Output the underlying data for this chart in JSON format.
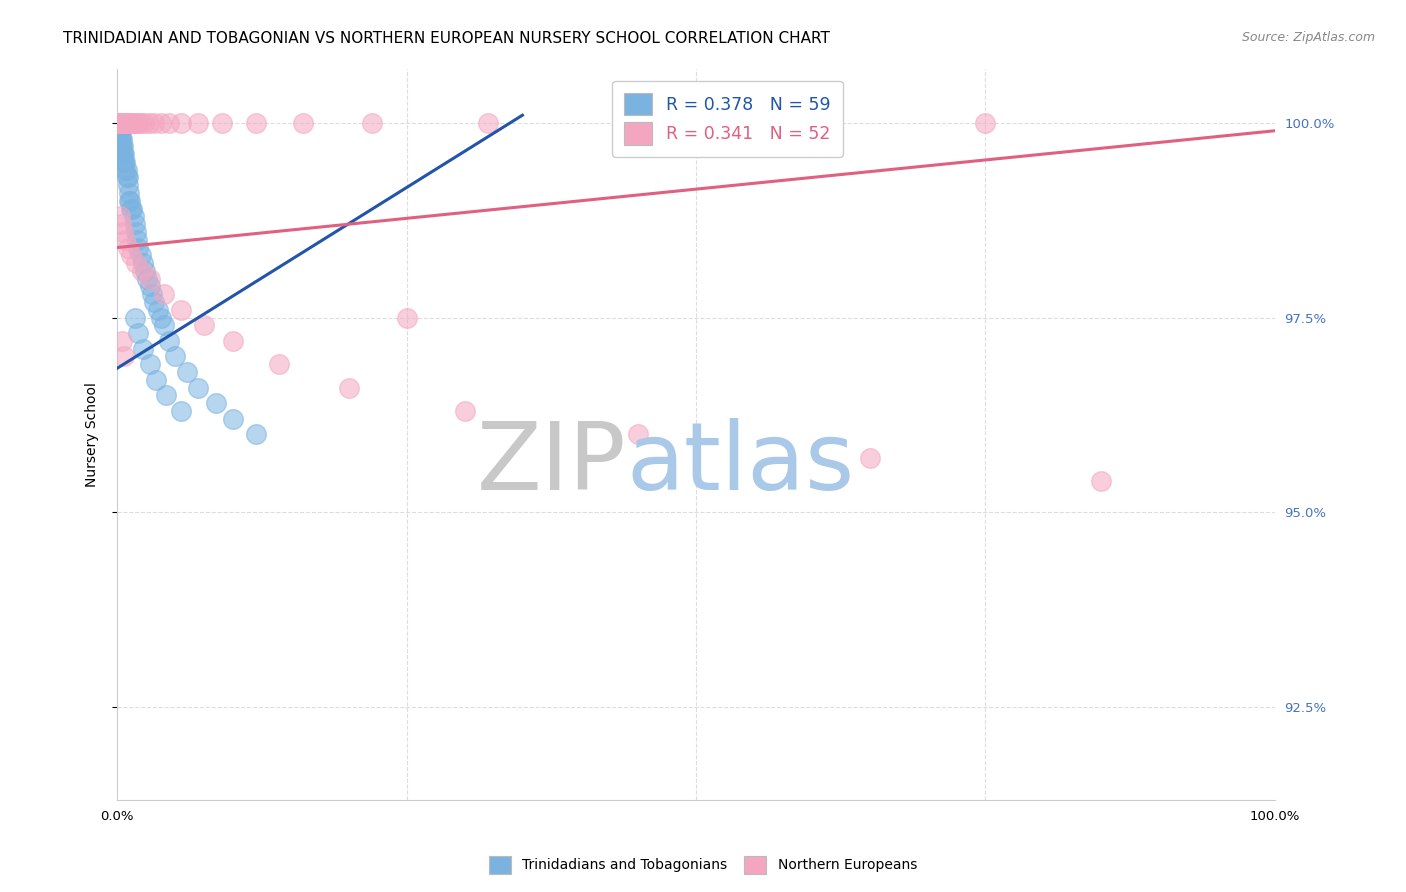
{
  "title": "TRINIDADIAN AND TOBAGONIAN VS NORTHERN EUROPEAN NURSERY SCHOOL CORRELATION CHART",
  "source": "Source: ZipAtlas.com",
  "ylabel": "Nursery School",
  "ytick_labels": [
    "100.0%",
    "97.5%",
    "95.0%",
    "92.5%"
  ],
  "ytick_values": [
    1.0,
    0.975,
    0.95,
    0.925
  ],
  "xlim": [
    0.0,
    1.0
  ],
  "ylim": [
    0.913,
    1.007
  ],
  "blue_color": "#7ab3e0",
  "pink_color": "#f4a6c0",
  "blue_line_color": "#2255aa",
  "pink_line_color": "#e06080",
  "blue_R": 0.378,
  "blue_N": 59,
  "pink_R": 0.341,
  "pink_N": 52,
  "legend_label_blue": "Trinidadians and Tobagonians",
  "legend_label_pink": "Northern Europeans",
  "blue_line_x": [
    0.0,
    0.35
  ],
  "blue_line_y": [
    0.9685,
    1.001
  ],
  "pink_line_x": [
    0.0,
    1.0
  ],
  "pink_line_y": [
    0.984,
    0.999
  ],
  "blue_scatter_x": [
    0.001,
    0.001,
    0.001,
    0.002,
    0.002,
    0.002,
    0.002,
    0.003,
    0.003,
    0.003,
    0.003,
    0.004,
    0.004,
    0.004,
    0.005,
    0.005,
    0.005,
    0.006,
    0.006,
    0.007,
    0.007,
    0.008,
    0.008,
    0.009,
    0.009,
    0.01,
    0.01,
    0.011,
    0.012,
    0.013,
    0.014,
    0.015,
    0.016,
    0.017,
    0.018,
    0.02,
    0.022,
    0.024,
    0.026,
    0.028,
    0.03,
    0.032,
    0.035,
    0.038,
    0.04,
    0.045,
    0.05,
    0.06,
    0.07,
    0.085,
    0.1,
    0.12,
    0.015,
    0.018,
    0.022,
    0.028,
    0.033,
    0.042,
    0.055
  ],
  "blue_scatter_y": [
    0.999,
    0.998,
    0.997,
    0.999,
    0.998,
    0.997,
    0.996,
    0.999,
    0.998,
    0.997,
    0.996,
    0.998,
    0.997,
    0.996,
    0.997,
    0.996,
    0.995,
    0.996,
    0.995,
    0.995,
    0.994,
    0.994,
    0.993,
    0.993,
    0.992,
    0.991,
    0.99,
    0.99,
    0.989,
    0.989,
    0.988,
    0.987,
    0.986,
    0.985,
    0.984,
    0.983,
    0.982,
    0.981,
    0.98,
    0.979,
    0.978,
    0.977,
    0.976,
    0.975,
    0.974,
    0.972,
    0.97,
    0.968,
    0.966,
    0.964,
    0.962,
    0.96,
    0.975,
    0.973,
    0.971,
    0.969,
    0.967,
    0.965,
    0.963
  ],
  "pink_scatter_x": [
    0.001,
    0.002,
    0.003,
    0.004,
    0.005,
    0.006,
    0.007,
    0.008,
    0.009,
    0.01,
    0.011,
    0.012,
    0.014,
    0.016,
    0.018,
    0.02,
    0.023,
    0.027,
    0.032,
    0.038,
    0.045,
    0.055,
    0.07,
    0.09,
    0.12,
    0.16,
    0.22,
    0.32,
    0.5,
    0.75,
    0.002,
    0.003,
    0.005,
    0.007,
    0.009,
    0.012,
    0.016,
    0.021,
    0.028,
    0.04,
    0.055,
    0.075,
    0.1,
    0.14,
    0.2,
    0.3,
    0.45,
    0.65,
    0.85,
    0.004,
    0.006,
    0.25
  ],
  "pink_scatter_y": [
    1.0,
    1.0,
    1.0,
    1.0,
    1.0,
    1.0,
    1.0,
    1.0,
    1.0,
    1.0,
    1.0,
    1.0,
    1.0,
    1.0,
    1.0,
    1.0,
    1.0,
    1.0,
    1.0,
    1.0,
    1.0,
    1.0,
    1.0,
    1.0,
    1.0,
    1.0,
    1.0,
    1.0,
    1.0,
    1.0,
    0.988,
    0.987,
    0.986,
    0.985,
    0.984,
    0.983,
    0.982,
    0.981,
    0.98,
    0.978,
    0.976,
    0.974,
    0.972,
    0.969,
    0.966,
    0.963,
    0.96,
    0.957,
    0.954,
    0.972,
    0.97,
    0.975
  ],
  "background_color": "#ffffff",
  "grid_color": "#dddddd",
  "axis_color": "#cccccc",
  "right_tick_color": "#4472c4",
  "title_fontsize": 11,
  "label_fontsize": 10,
  "tick_fontsize": 9.5,
  "source_fontsize": 9,
  "watermark_zip_color": "#c8c8c8",
  "watermark_atlas_color": "#aac8e8",
  "watermark_fontsize": 68
}
